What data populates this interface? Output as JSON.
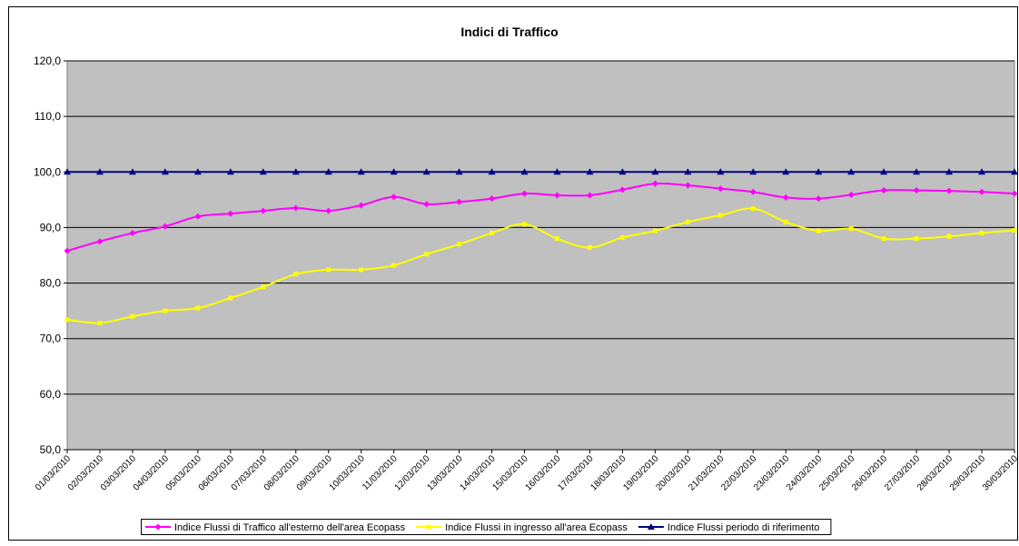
{
  "chart_data": {
    "type": "line",
    "title": "Indici di Traffico",
    "categories": [
      "01/03/2010",
      "02/03/2010",
      "03/03/2010",
      "04/03/2010",
      "05/03/2010",
      "06/03/2010",
      "07/03/2010",
      "08/03/2010",
      "09/03/2010",
      "10/03/2010",
      "11/03/2010",
      "12/03/2010",
      "13/03/2010",
      "14/03/2010",
      "15/03/2010",
      "16/03/2010",
      "17/03/2010",
      "18/03/2010",
      "19/03/2010",
      "20/03/2010",
      "21/03/2010",
      "22/03/2010",
      "23/03/2010",
      "24/03/2010",
      "25/03/2010",
      "26/03/2010",
      "27/03/2010",
      "28/03/2010",
      "29/03/2010",
      "30/03/2010"
    ],
    "series": [
      {
        "name": "Indice Flussi di Traffico all'esterno dell'area Ecopass",
        "color": "#ff00ff",
        "marker": "diamond",
        "values": [
          85.8,
          87.5,
          89,
          90.2,
          92,
          92.5,
          93,
          93.5,
          93,
          94,
          95.5,
          94.2,
          94.6,
          95.2,
          96.1,
          95.8,
          95.8,
          96.8,
          97.9,
          97.6,
          97,
          96.4,
          95.4,
          95.2,
          95.9,
          96.7,
          96.7,
          96.6,
          96.4,
          96.1
        ]
      },
      {
        "name": "Indice Flussi in ingresso all'area Ecopass",
        "color": "#ffff00",
        "marker": "square",
        "values": [
          73.4,
          72.8,
          74,
          75,
          75.5,
          77.3,
          79.3,
          81.6,
          82.4,
          82.4,
          83.2,
          85.2,
          87,
          89,
          90.6,
          88,
          86.4,
          88.2,
          89.4,
          91,
          92.2,
          93.4,
          91,
          89.4,
          89.8,
          88,
          88,
          88.4,
          89,
          89.5
        ]
      },
      {
        "name": "Indice Flussi periodo di riferimento",
        "color": "#000080",
        "marker": "triangle",
        "values": [
          100,
          100,
          100,
          100,
          100,
          100,
          100,
          100,
          100,
          100,
          100,
          100,
          100,
          100,
          100,
          100,
          100,
          100,
          100,
          100,
          100,
          100,
          100,
          100,
          100,
          100,
          100,
          100,
          100,
          100
        ]
      }
    ],
    "ylim": [
      50,
      120
    ],
    "yticks": [
      {
        "value": 50,
        "label": "50,0"
      },
      {
        "value": 60,
        "label": "60,0"
      },
      {
        "value": 70,
        "label": "70,0"
      },
      {
        "value": 80,
        "label": "80,0"
      },
      {
        "value": 90,
        "label": "90,0"
      },
      {
        "value": 100,
        "label": "100,0"
      },
      {
        "value": 110,
        "label": "110,0"
      },
      {
        "value": 120,
        "label": "120,0"
      }
    ],
    "grid": true,
    "legend": "bottom",
    "plot_background": "#c0c0c0",
    "smooth": true
  }
}
